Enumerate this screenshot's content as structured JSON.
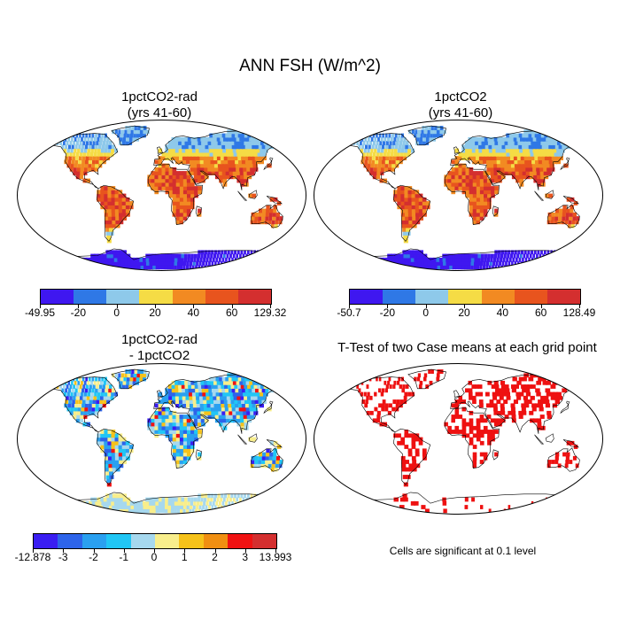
{
  "title": "ANN FSH (W/m^2)",
  "panels": [
    {
      "title_line1": "1pctCO2-rad",
      "title_line2": "(yrs 41-60)",
      "palette": "pos"
    },
    {
      "title_line1": "1pctCO2",
      "title_line2": "(yrs 41-60)",
      "palette": "pos"
    },
    {
      "title_line1": "1pctCO2-rad",
      "title_line2": "- 1pctCO2",
      "palette": "diff"
    },
    {
      "title_line1": "T-Test of two Case means at each grid point",
      "title_line2": "",
      "palette": "ttest"
    }
  ],
  "colorbars": [
    {
      "labels": [
        "-49.95",
        "-20",
        "0",
        "20",
        "40",
        "60",
        "129.32"
      ],
      "colors": [
        "#3f17f0",
        "#2f78e6",
        "#8ec9ea",
        "#f5dc45",
        "#f28a22",
        "#e8541e",
        "#d42f2f"
      ]
    },
    {
      "labels": [
        "-50.7",
        "-20",
        "0",
        "20",
        "40",
        "60",
        "128.49"
      ],
      "colors": [
        "#3f17f0",
        "#2f78e6",
        "#8ec9ea",
        "#f5dc45",
        "#f28a22",
        "#e8541e",
        "#d42f2f"
      ]
    },
    {
      "labels": [
        "-12.878",
        "-3",
        "-2",
        "-1",
        "0",
        "1",
        "2",
        "3",
        "13.993"
      ],
      "colors": [
        "#3a1ef2",
        "#2d64ea",
        "#2aa0f0",
        "#21c6f5",
        "#a6d8ee",
        "#f8ee8c",
        "#f6c21a",
        "#f08f12",
        "#f01212",
        "#d42f2f"
      ]
    }
  ],
  "significance_note": "Cells are significant at 0.1 level",
  "colors": {
    "ocean": "#ffffff",
    "coast": "#000000",
    "significant": "#ee1111"
  }
}
